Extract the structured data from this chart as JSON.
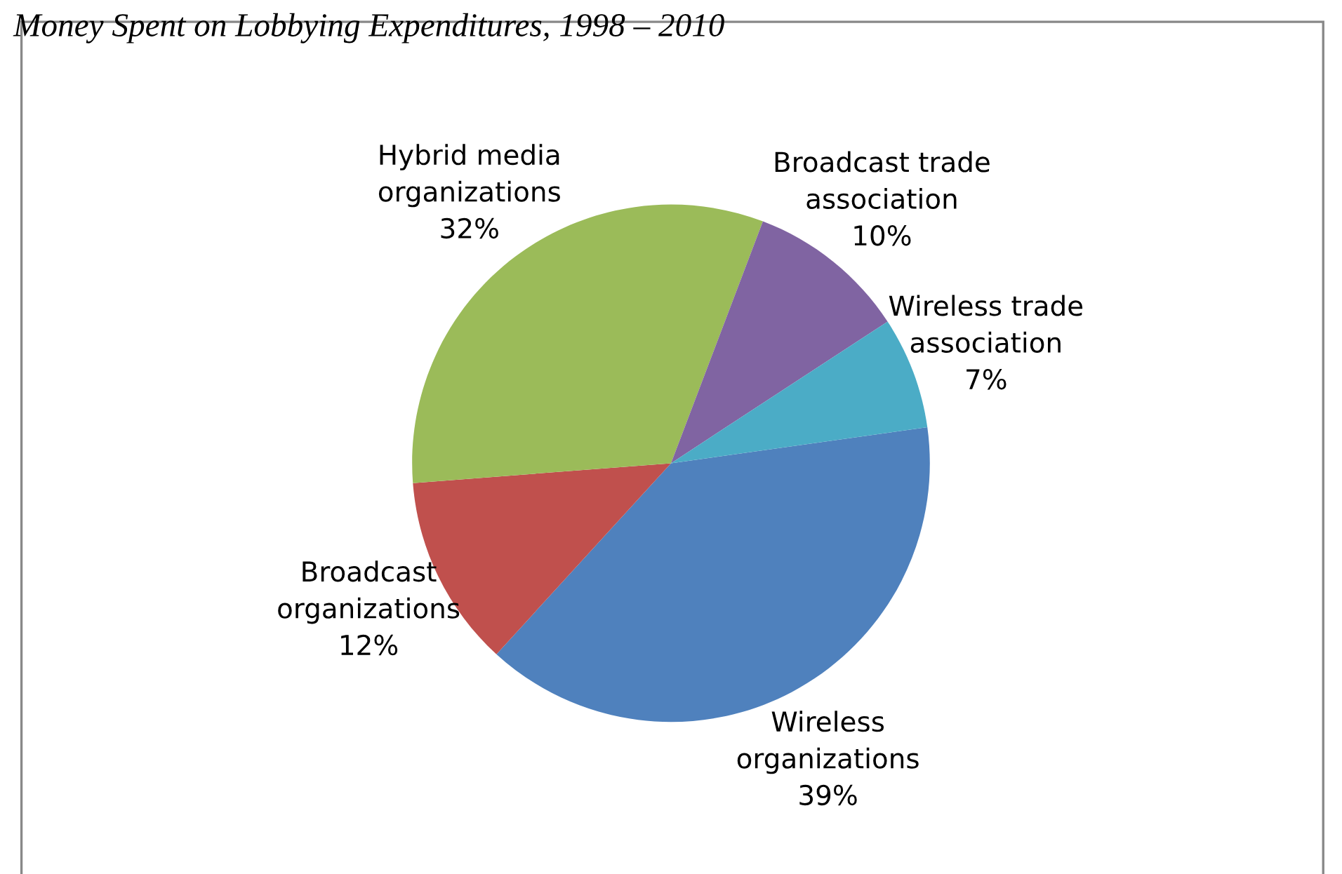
{
  "chart_data": {
    "type": "pie",
    "title": "Money Spent on Lobbying Expenditures, 1998 – 2010",
    "categories": [
      "Wireless organizations",
      "Broadcast organizations",
      "Hybrid media organizations",
      "Broadcast trade association",
      "Wireless trade association"
    ],
    "values": [
      39,
      12,
      32,
      10,
      7
    ],
    "colors": [
      "#4f81bd",
      "#c0504d",
      "#9bbb59",
      "#8064a2",
      "#4bacc6"
    ],
    "value_labels": [
      "39%",
      "12%",
      "32%",
      "10%",
      "7%"
    ],
    "legend": false
  }
}
